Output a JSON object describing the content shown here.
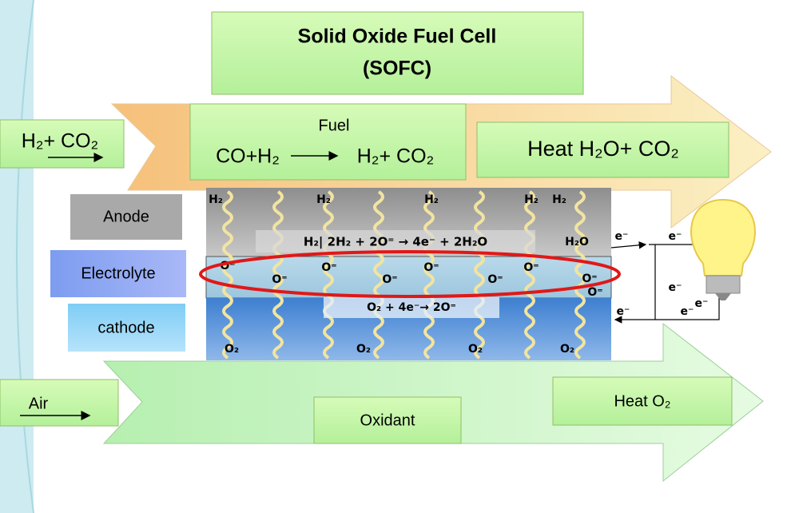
{
  "title": [
    "Solid Oxide Fuel Cell",
    "(SOFC)"
  ],
  "inlet_fuel": "H₂+ CO₂",
  "fuel_box": {
    "label": "Fuel",
    "reactants": "CO+H₂",
    "products": "H₂+ CO₂"
  },
  "exhaust_fuel": "Heat H₂O+ CO₂",
  "layers": [
    "Anode",
    "Electrolyte",
    "cathode"
  ],
  "cell": {
    "anode_inputs": [
      "H₂",
      "H₂",
      "H₂",
      "H₂",
      "H₂"
    ],
    "anode_reaction": "H₂| 2H₂ + 2O⁼ → 4e⁻ + 2H₂O",
    "anode_output": "H₂O",
    "ions": [
      "O⁼",
      "O⁼",
      "O⁼",
      "O⁼",
      "O⁼",
      "O⁼",
      "O⁼",
      "O⁼",
      "O⁼"
    ],
    "cathode_reaction": "O₂ + 4e⁻→ 2O⁼",
    "cathode_inputs": [
      "O₂",
      "O₂",
      "O₂",
      "O₂"
    ],
    "electrons": [
      "e⁻",
      "e⁻",
      "e⁻",
      "e⁻",
      "e⁻",
      "e⁻"
    ]
  },
  "inlet_air": "Air",
  "oxidant": "Oxidant",
  "exhaust_air": "Heat O₂"
}
